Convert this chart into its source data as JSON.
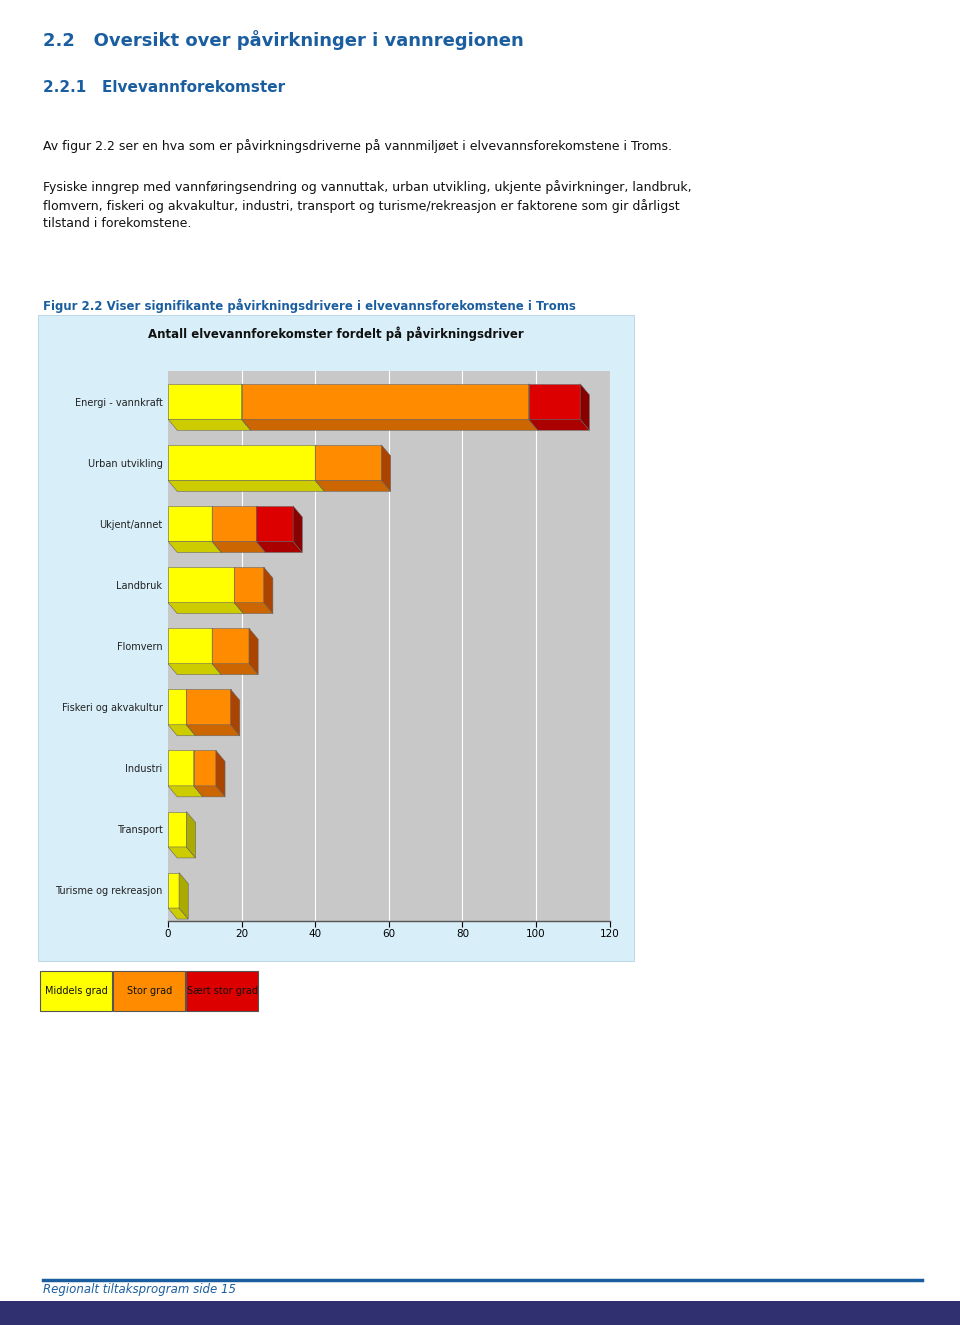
{
  "title": "Antall elvevannforekomster fordelt på påvirkningsdriver",
  "fig_caption": "Figur 2.2 Viser signifikante påvirkningsdrivere i elvevannsforekomstene i Troms",
  "heading1": "2.2   Oversikt over påvirkninger i vannregionen",
  "heading2": "2.2.1   Elvevannforekomster",
  "body_text1": "Av figur 2.2 ser en hva som er påvirkningsdriverne på vannmiljøet i elvevannsforekomstene i Troms.",
  "body_text2": "Fysiske inngrep med vannføringsendring og vannuttak, urban utvikling, ukjente påvirkninger, landbruk,\nflomvern, fiskeri og akvakultur, industri, transport og turisme/rekreasjon er faktorene som gir dårligst\ntilstand i forekomstene.",
  "footer": "Regionalt tiltaksprogram side 15",
  "categories": [
    "Energi - vannkraft",
    "Urban utvikling",
    "Ukjent/annet",
    "Landbruk",
    "Flomvern",
    "Fiskeri og akvakultur",
    "Industri",
    "Transport",
    "Turisme og rekreasjon"
  ],
  "middels_grad": [
    20,
    40,
    12,
    18,
    12,
    5,
    7,
    5,
    3
  ],
  "stor_grad": [
    78,
    18,
    12,
    8,
    10,
    12,
    6,
    0,
    0
  ],
  "saerst_stor": [
    14,
    0,
    10,
    0,
    0,
    0,
    0,
    0,
    0
  ],
  "color_middels": "#FFFF00",
  "color_stor": "#FF8C00",
  "color_saerst": "#DD0000",
  "color_3d_mid_top": "#CCCC00",
  "color_3d_mid_side": "#AAAA00",
  "color_3d_stor_top": "#CC6600",
  "color_3d_stor_side": "#AA4400",
  "color_3d_saerst_top": "#AA0000",
  "color_3d_saerst_side": "#880000",
  "xlim": [
    0,
    120
  ],
  "xticks": [
    0,
    20,
    40,
    60,
    80,
    100,
    120
  ],
  "bg_chart": "#D8EEF8",
  "bg_plot": "#C8C8C8",
  "bg_page": "#FFFFFF",
  "legend_items": [
    "Middels grad",
    "Stor grad",
    "Sært stor grad"
  ],
  "legend_colors": [
    "#FFFF00",
    "#FF8C00",
    "#DD0000"
  ],
  "heading1_color": "#1B5EA0",
  "heading2_color": "#1B5EA0",
  "caption_color": "#1B5EA0",
  "footer_color": "#1B5EA0",
  "text_color": "#111111"
}
